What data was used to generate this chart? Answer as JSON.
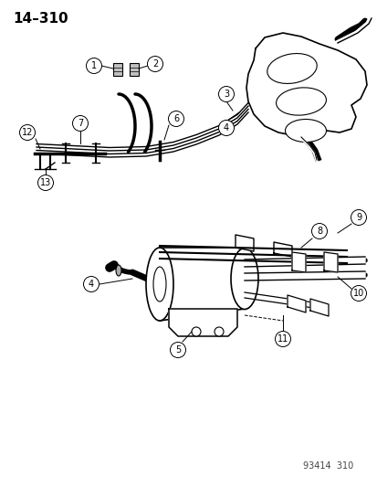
{
  "title": "14–310",
  "footer": "93414  310",
  "bg_color": "#ffffff",
  "line_color": "#000000",
  "title_fontsize": 11,
  "footer_fontsize": 7,
  "label_fontsize": 7,
  "fig_width": 4.14,
  "fig_height": 5.33
}
